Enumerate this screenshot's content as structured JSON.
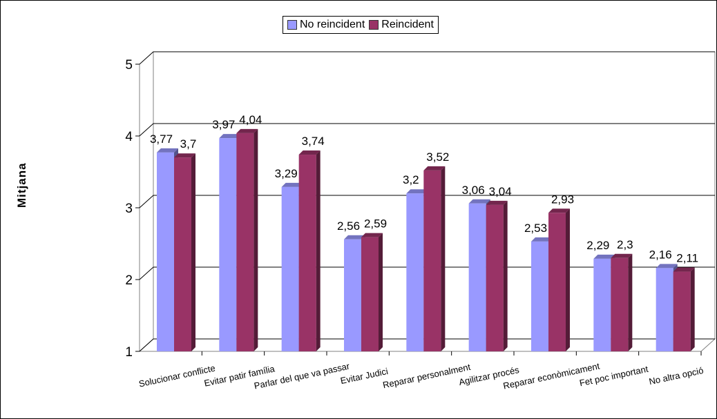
{
  "chart_data": {
    "type": "bar",
    "title": "",
    "xlabel": "",
    "ylabel": "Mitjana",
    "ylim": [
      1,
      5
    ],
    "yticks": [
      "1",
      "2",
      "3",
      "4",
      "5"
    ],
    "grid": true,
    "legend_position": "top-center",
    "categories": [
      "Solucionar conflicte",
      "Evitar patir família",
      "Parlar del que va passar",
      "Evitar Judici",
      "Reparar personalment",
      "Agilitzar procés",
      "Reparar econòmicament",
      "Fet poc important",
      "No altra opció"
    ],
    "series": [
      {
        "name": "No reincident",
        "color": "#9999ff",
        "values": [
          3.77,
          3.97,
          3.29,
          2.56,
          3.2,
          3.06,
          2.53,
          2.29,
          2.16
        ],
        "labels": [
          "3,77",
          "3,97",
          "3,29",
          "2,56",
          "3,2",
          "3,06",
          "2,53",
          "2,29",
          "2,16"
        ]
      },
      {
        "name": "Reincident",
        "color": "#993366",
        "values": [
          3.7,
          4.04,
          3.74,
          2.59,
          3.52,
          3.04,
          2.93,
          2.3,
          2.11
        ],
        "labels": [
          "3,7",
          "4,04",
          "3,74",
          "2,59",
          "3,52",
          "3,04",
          "2,93",
          "2,3",
          "2,11"
        ]
      }
    ]
  }
}
